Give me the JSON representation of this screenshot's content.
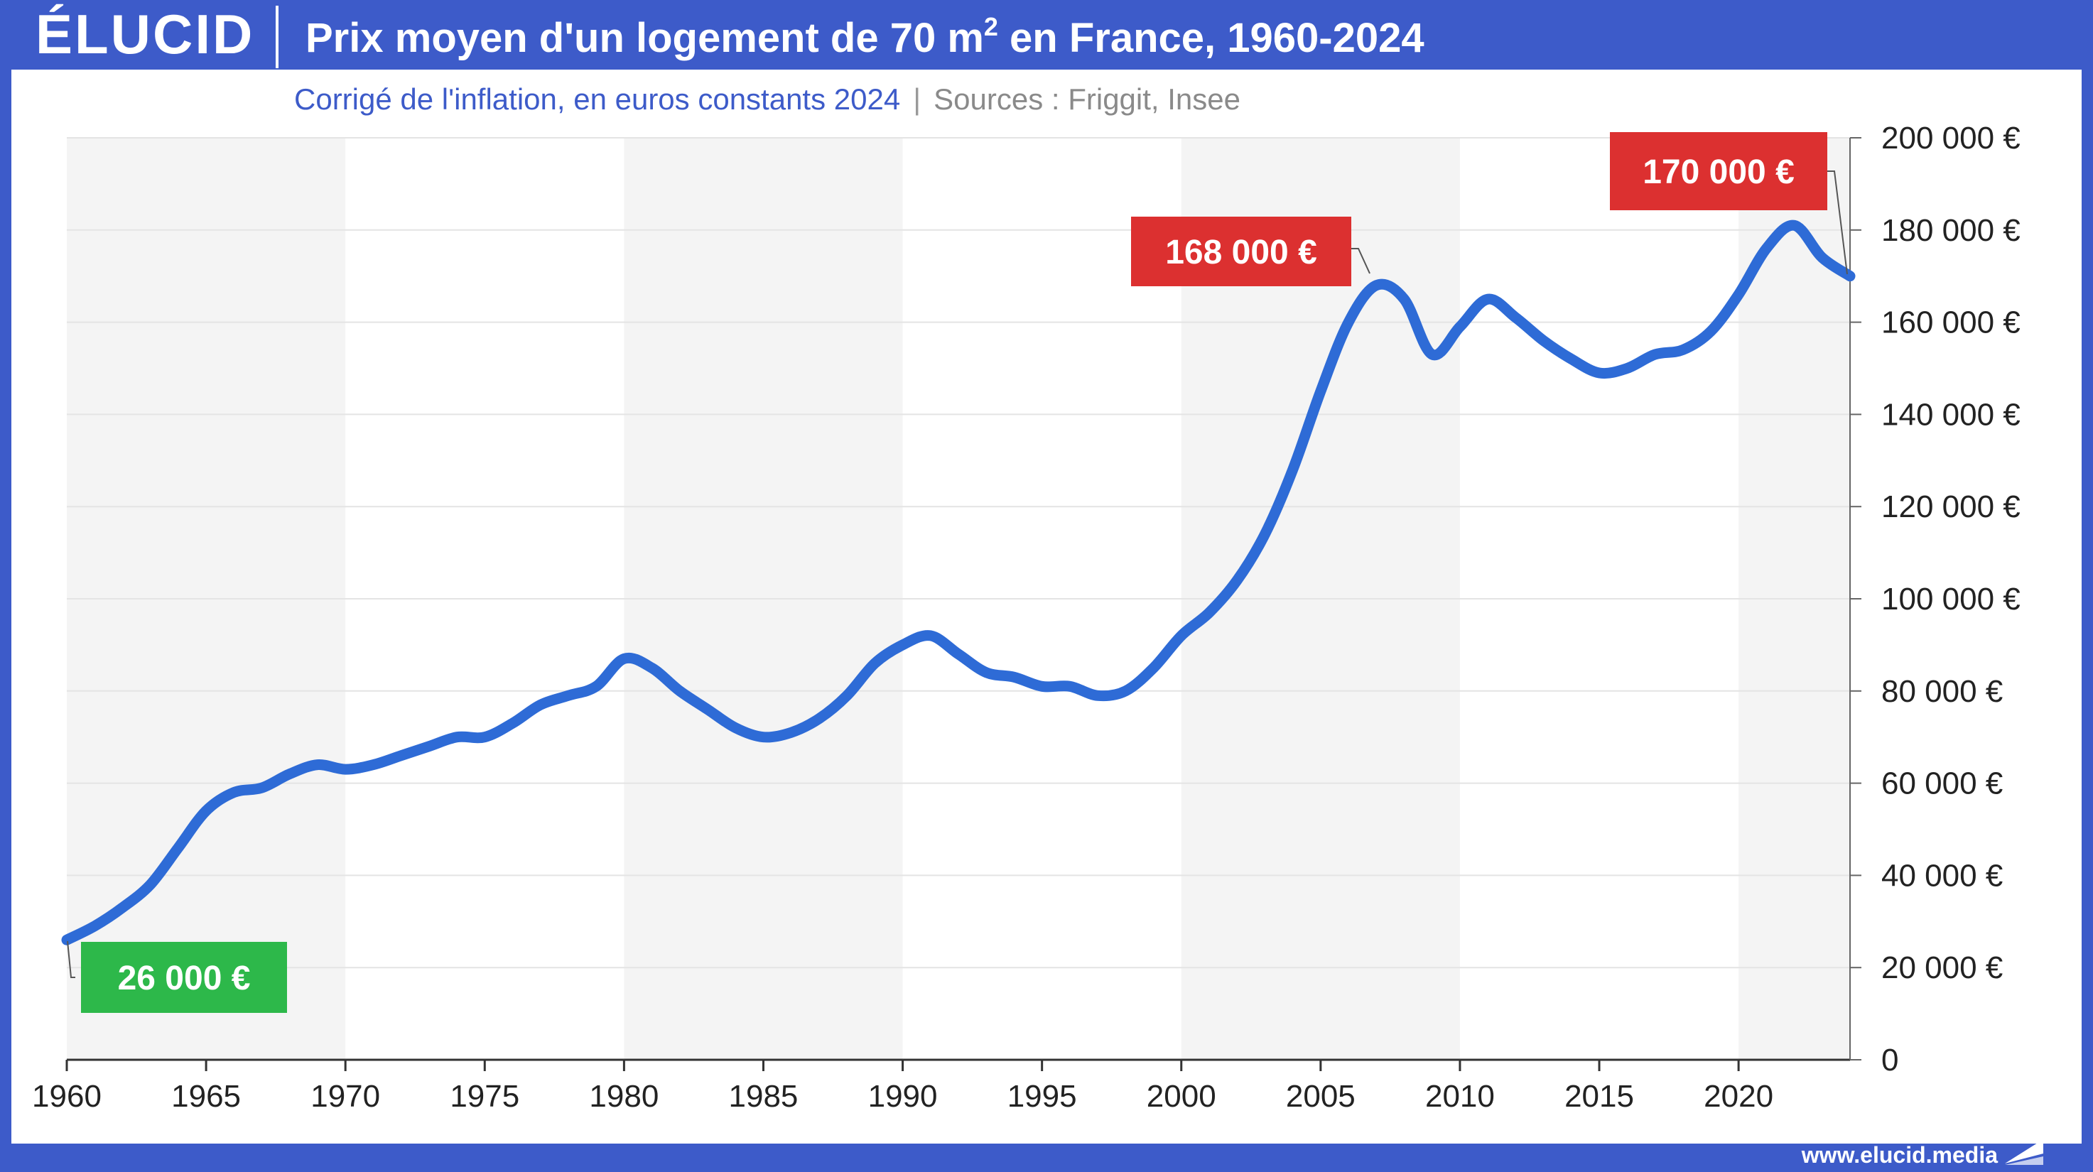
{
  "header": {
    "logo": "ÉLUCID",
    "title_prefix": "Prix moyen d'un logement de 70 m",
    "title_sup": "2",
    "title_suffix": " en France, 1960-2024"
  },
  "subtitle": {
    "main": "Corrigé de l'inflation, en euros constants 2024",
    "separator": "|",
    "sources": "Sources : Friggit, Insee"
  },
  "footer": {
    "url": "www.elucid.media"
  },
  "colors": {
    "brand": "#3d5bc9",
    "line": "#2e6bd6",
    "label_green": "#2db84a",
    "label_red": "#dc3030",
    "band": "#f4f4f4"
  },
  "chart_data": {
    "type": "line",
    "title": "Prix moyen d'un logement de 70 m2 en France, 1960-2024",
    "subtitle": "Corrigé de l'inflation, en euros constants 2024",
    "xlim": [
      1960,
      2024
    ],
    "ylim": [
      0,
      200000
    ],
    "x_ticks": [
      1960,
      1965,
      1970,
      1975,
      1980,
      1985,
      1990,
      1995,
      2000,
      2005,
      2010,
      2015,
      2020
    ],
    "x_tick_labels": [
      "1960",
      "1965",
      "1970",
      "1975",
      "1980",
      "1985",
      "1990",
      "1995",
      "2000",
      "2005",
      "2010",
      "2015",
      "2020"
    ],
    "y_ticks": [
      0,
      20000,
      40000,
      60000,
      80000,
      100000,
      120000,
      140000,
      160000,
      180000,
      200000
    ],
    "y_tick_labels": [
      "0",
      "20 000 €",
      "40 000 €",
      "60 000 €",
      "80 000 €",
      "100 000 €",
      "120 000 €",
      "140 000 €",
      "160 000 €",
      "180 000 €",
      "200 000 €"
    ],
    "y_axis_side": "right",
    "grid": true,
    "shaded_decades": [
      [
        1960,
        1970
      ],
      [
        1980,
        1990
      ],
      [
        2000,
        2010
      ],
      [
        2020,
        2024
      ]
    ],
    "series": [
      {
        "x": [
          1960,
          1961,
          1962,
          1963,
          1964,
          1965,
          1966,
          1967,
          1968,
          1969,
          1970,
          1971,
          1972,
          1973,
          1974,
          1975,
          1976,
          1977,
          1978,
          1979,
          1980,
          1981,
          1982,
          1983,
          1984,
          1985,
          1986,
          1987,
          1988,
          1989,
          1990,
          1991,
          1992,
          1993,
          1994,
          1995,
          1996,
          1997,
          1998,
          1999,
          2000,
          2001,
          2002,
          2003,
          2004,
          2005,
          2006,
          2007,
          2008,
          2009,
          2010,
          2011,
          2012,
          2013,
          2014,
          2015,
          2016,
          2017,
          2018,
          2019,
          2020,
          2021,
          2022,
          2023,
          2024
        ],
        "values": [
          26000,
          29000,
          33000,
          38000,
          46000,
          54000,
          58000,
          59000,
          62000,
          64000,
          63000,
          64000,
          66000,
          68000,
          70000,
          70000,
          73000,
          77000,
          79000,
          81000,
          87000,
          85000,
          80000,
          76000,
          72000,
          70000,
          71000,
          74000,
          79000,
          86000,
          90000,
          92000,
          88000,
          84000,
          83000,
          81000,
          81000,
          79000,
          80000,
          85000,
          92000,
          97000,
          104000,
          114000,
          128000,
          145000,
          160000,
          168000,
          165000,
          153000,
          159000,
          165000,
          161000,
          156000,
          152000,
          149000,
          150000,
          153000,
          154000,
          158000,
          166000,
          176000,
          181000,
          174000,
          170000
        ]
      }
    ],
    "annotations": [
      {
        "x": 1960,
        "y": 26000,
        "label": "26 000 €",
        "color": "green"
      },
      {
        "x": 2007,
        "y": 168000,
        "label": "168 000 €",
        "color": "red"
      },
      {
        "x": 2024,
        "y": 170000,
        "label": "170 000 €",
        "color": "red"
      }
    ]
  }
}
